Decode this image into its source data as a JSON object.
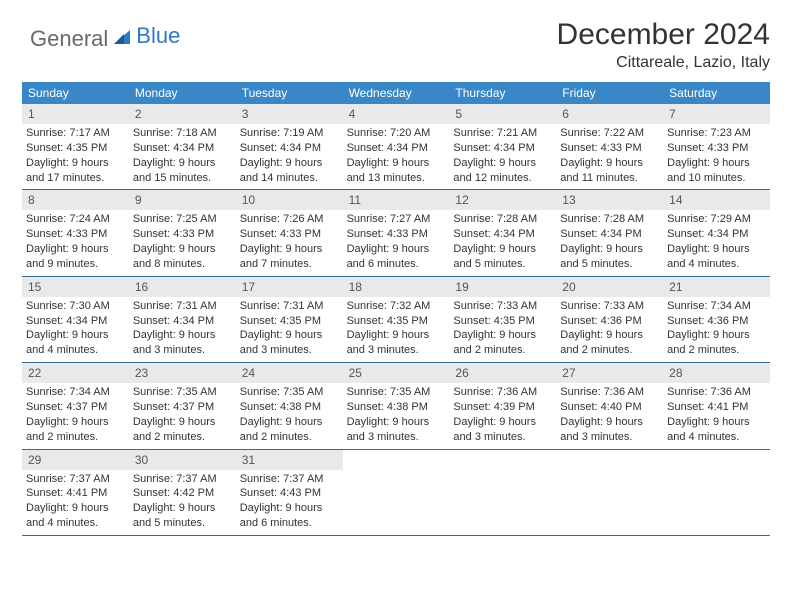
{
  "brand": {
    "part1": "General",
    "part2": "Blue"
  },
  "title": "December 2024",
  "location": "Cittareale, Lazio, Italy",
  "colors": {
    "header_bg": "#3a87c8",
    "daynum_bg": "#e8e9ea",
    "row_border": "#3a6a8f",
    "brand_gray": "#6a6a6a",
    "brand_blue": "#2f78c4"
  },
  "weekdays": [
    "Sunday",
    "Monday",
    "Tuesday",
    "Wednesday",
    "Thursday",
    "Friday",
    "Saturday"
  ],
  "weeks": [
    [
      {
        "n": "1",
        "sr": "Sunrise: 7:17 AM",
        "ss": "Sunset: 4:35 PM",
        "d1": "Daylight: 9 hours",
        "d2": "and 17 minutes."
      },
      {
        "n": "2",
        "sr": "Sunrise: 7:18 AM",
        "ss": "Sunset: 4:34 PM",
        "d1": "Daylight: 9 hours",
        "d2": "and 15 minutes."
      },
      {
        "n": "3",
        "sr": "Sunrise: 7:19 AM",
        "ss": "Sunset: 4:34 PM",
        "d1": "Daylight: 9 hours",
        "d2": "and 14 minutes."
      },
      {
        "n": "4",
        "sr": "Sunrise: 7:20 AM",
        "ss": "Sunset: 4:34 PM",
        "d1": "Daylight: 9 hours",
        "d2": "and 13 minutes."
      },
      {
        "n": "5",
        "sr": "Sunrise: 7:21 AM",
        "ss": "Sunset: 4:34 PM",
        "d1": "Daylight: 9 hours",
        "d2": "and 12 minutes."
      },
      {
        "n": "6",
        "sr": "Sunrise: 7:22 AM",
        "ss": "Sunset: 4:33 PM",
        "d1": "Daylight: 9 hours",
        "d2": "and 11 minutes."
      },
      {
        "n": "7",
        "sr": "Sunrise: 7:23 AM",
        "ss": "Sunset: 4:33 PM",
        "d1": "Daylight: 9 hours",
        "d2": "and 10 minutes."
      }
    ],
    [
      {
        "n": "8",
        "sr": "Sunrise: 7:24 AM",
        "ss": "Sunset: 4:33 PM",
        "d1": "Daylight: 9 hours",
        "d2": "and 9 minutes."
      },
      {
        "n": "9",
        "sr": "Sunrise: 7:25 AM",
        "ss": "Sunset: 4:33 PM",
        "d1": "Daylight: 9 hours",
        "d2": "and 8 minutes."
      },
      {
        "n": "10",
        "sr": "Sunrise: 7:26 AM",
        "ss": "Sunset: 4:33 PM",
        "d1": "Daylight: 9 hours",
        "d2": "and 7 minutes."
      },
      {
        "n": "11",
        "sr": "Sunrise: 7:27 AM",
        "ss": "Sunset: 4:33 PM",
        "d1": "Daylight: 9 hours",
        "d2": "and 6 minutes."
      },
      {
        "n": "12",
        "sr": "Sunrise: 7:28 AM",
        "ss": "Sunset: 4:34 PM",
        "d1": "Daylight: 9 hours",
        "d2": "and 5 minutes."
      },
      {
        "n": "13",
        "sr": "Sunrise: 7:28 AM",
        "ss": "Sunset: 4:34 PM",
        "d1": "Daylight: 9 hours",
        "d2": "and 5 minutes."
      },
      {
        "n": "14",
        "sr": "Sunrise: 7:29 AM",
        "ss": "Sunset: 4:34 PM",
        "d1": "Daylight: 9 hours",
        "d2": "and 4 minutes."
      }
    ],
    [
      {
        "n": "15",
        "sr": "Sunrise: 7:30 AM",
        "ss": "Sunset: 4:34 PM",
        "d1": "Daylight: 9 hours",
        "d2": "and 4 minutes."
      },
      {
        "n": "16",
        "sr": "Sunrise: 7:31 AM",
        "ss": "Sunset: 4:34 PM",
        "d1": "Daylight: 9 hours",
        "d2": "and 3 minutes."
      },
      {
        "n": "17",
        "sr": "Sunrise: 7:31 AM",
        "ss": "Sunset: 4:35 PM",
        "d1": "Daylight: 9 hours",
        "d2": "and 3 minutes."
      },
      {
        "n": "18",
        "sr": "Sunrise: 7:32 AM",
        "ss": "Sunset: 4:35 PM",
        "d1": "Daylight: 9 hours",
        "d2": "and 3 minutes."
      },
      {
        "n": "19",
        "sr": "Sunrise: 7:33 AM",
        "ss": "Sunset: 4:35 PM",
        "d1": "Daylight: 9 hours",
        "d2": "and 2 minutes."
      },
      {
        "n": "20",
        "sr": "Sunrise: 7:33 AM",
        "ss": "Sunset: 4:36 PM",
        "d1": "Daylight: 9 hours",
        "d2": "and 2 minutes."
      },
      {
        "n": "21",
        "sr": "Sunrise: 7:34 AM",
        "ss": "Sunset: 4:36 PM",
        "d1": "Daylight: 9 hours",
        "d2": "and 2 minutes."
      }
    ],
    [
      {
        "n": "22",
        "sr": "Sunrise: 7:34 AM",
        "ss": "Sunset: 4:37 PM",
        "d1": "Daylight: 9 hours",
        "d2": "and 2 minutes."
      },
      {
        "n": "23",
        "sr": "Sunrise: 7:35 AM",
        "ss": "Sunset: 4:37 PM",
        "d1": "Daylight: 9 hours",
        "d2": "and 2 minutes."
      },
      {
        "n": "24",
        "sr": "Sunrise: 7:35 AM",
        "ss": "Sunset: 4:38 PM",
        "d1": "Daylight: 9 hours",
        "d2": "and 2 minutes."
      },
      {
        "n": "25",
        "sr": "Sunrise: 7:35 AM",
        "ss": "Sunset: 4:38 PM",
        "d1": "Daylight: 9 hours",
        "d2": "and 3 minutes."
      },
      {
        "n": "26",
        "sr": "Sunrise: 7:36 AM",
        "ss": "Sunset: 4:39 PM",
        "d1": "Daylight: 9 hours",
        "d2": "and 3 minutes."
      },
      {
        "n": "27",
        "sr": "Sunrise: 7:36 AM",
        "ss": "Sunset: 4:40 PM",
        "d1": "Daylight: 9 hours",
        "d2": "and 3 minutes."
      },
      {
        "n": "28",
        "sr": "Sunrise: 7:36 AM",
        "ss": "Sunset: 4:41 PM",
        "d1": "Daylight: 9 hours",
        "d2": "and 4 minutes."
      }
    ],
    [
      {
        "n": "29",
        "sr": "Sunrise: 7:37 AM",
        "ss": "Sunset: 4:41 PM",
        "d1": "Daylight: 9 hours",
        "d2": "and 4 minutes."
      },
      {
        "n": "30",
        "sr": "Sunrise: 7:37 AM",
        "ss": "Sunset: 4:42 PM",
        "d1": "Daylight: 9 hours",
        "d2": "and 5 minutes."
      },
      {
        "n": "31",
        "sr": "Sunrise: 7:37 AM",
        "ss": "Sunset: 4:43 PM",
        "d1": "Daylight: 9 hours",
        "d2": "and 6 minutes."
      },
      null,
      null,
      null,
      null
    ]
  ]
}
